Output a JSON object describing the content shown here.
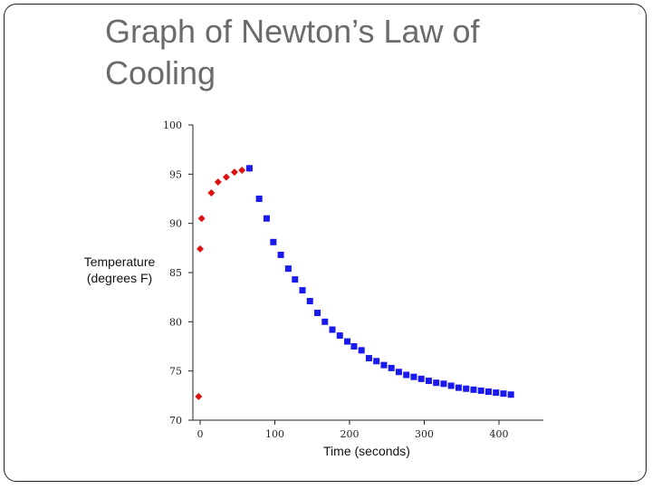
{
  "slide": {
    "title_line1": "Graph of Newton’s Law of",
    "title_line2": "Cooling"
  },
  "chart_data": {
    "type": "scatter",
    "title": "",
    "xlabel": "Time (seconds)",
    "ylabel_line1": "Temperature",
    "ylabel_line2": "(degrees F)",
    "xlim": [
      -10,
      450
    ],
    "ylim": [
      70,
      100
    ],
    "x_ticks": [
      0,
      100,
      200,
      300,
      400
    ],
    "y_ticks": [
      70,
      75,
      80,
      85,
      90,
      95,
      100
    ],
    "grid": false,
    "series": [
      {
        "marker": "diamond",
        "color": "#dd1111",
        "x": [
          -2,
          0,
          2,
          15,
          24,
          35,
          46,
          56,
          66
        ],
        "y": [
          72.4,
          87.4,
          90.5,
          93.1,
          94.2,
          94.7,
          95.2,
          95.4,
          95.6
        ]
      },
      {
        "marker": "square",
        "color": "#1a1aee",
        "x": [
          66,
          79,
          89,
          98,
          108,
          118,
          127,
          137,
          147,
          157,
          167,
          177,
          187,
          197,
          206,
          216,
          226,
          236,
          246,
          256,
          266,
          276,
          286,
          296,
          306,
          316,
          326,
          336,
          346,
          356,
          366,
          376,
          386,
          396,
          406,
          416
        ],
        "y": [
          95.6,
          92.5,
          90.5,
          88.1,
          86.8,
          85.4,
          84.3,
          83.2,
          82.1,
          80.9,
          80.0,
          79.2,
          78.6,
          78.0,
          77.5,
          77.1,
          76.3,
          76.0,
          75.6,
          75.3,
          74.9,
          74.6,
          74.4,
          74.2,
          74.0,
          73.8,
          73.7,
          73.5,
          73.3,
          73.2,
          73.1,
          73.0,
          72.9,
          72.8,
          72.7,
          72.6
        ]
      }
    ]
  },
  "colors": {
    "title": "#6b6b6b",
    "axis": "#222222",
    "heating": "#dd1111",
    "cooling": "#1a1aee"
  }
}
